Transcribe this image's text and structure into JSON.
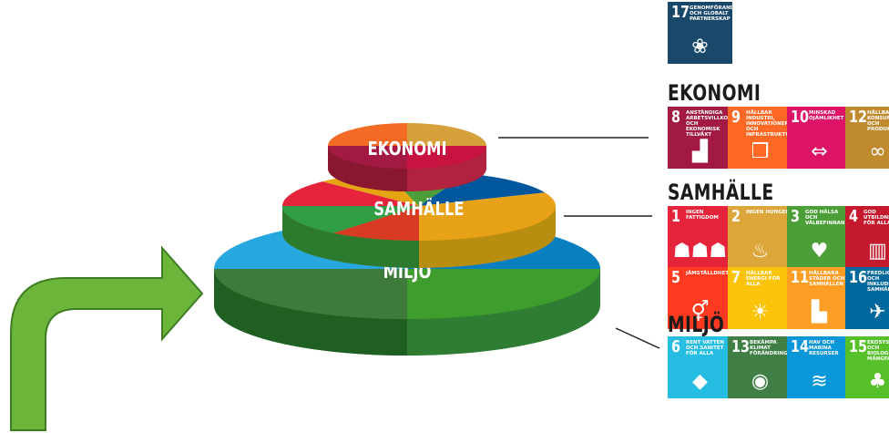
{
  "layers": [
    {
      "id": "ekonomi",
      "label": "EKONOMI"
    },
    {
      "id": "samhalle",
      "label": "SAMHÄLLE"
    },
    {
      "id": "miljo",
      "label": "MILJÖ"
    }
  ],
  "top_goal": {
    "num": "17",
    "text": "GENOMFÖRANDE OCH GLOBALT PARTNERSKAP",
    "color": "#19486a",
    "icon": "partnership-icon",
    "glyph": "❀"
  },
  "groups": [
    {
      "id": "ekonomi",
      "heading": "EKONOMI",
      "goals": [
        {
          "num": "8",
          "text": "ANSTÄNDIGA ARBETSVILLKOR OCH EKONOMISK TILLVÄXT",
          "color": "#a21942",
          "icon": "growth-chart-icon",
          "glyph": "▟"
        },
        {
          "num": "9",
          "text": "HÅLLBAR INDUSTRI, INNOVATIONER OCH INFRASTRUKTUR",
          "color": "#fd6925",
          "icon": "cubes-icon",
          "glyph": "❒"
        },
        {
          "num": "10",
          "text": "MINSKAD OJÄMLIKHET",
          "color": "#dd1367",
          "icon": "inequality-arrows-icon",
          "glyph": "⇔"
        },
        {
          "num": "12",
          "text": "HÅLLBAR KONSUMTION OCH PRODUKTION",
          "color": "#bf8b2e",
          "icon": "infinity-icon",
          "glyph": "∞"
        }
      ]
    },
    {
      "id": "samhalle",
      "heading": "SAMHÄLLE",
      "goals": [
        {
          "num": "1",
          "text": "INGEN FATTIGDOM",
          "color": "#e5243b",
          "icon": "family-icon",
          "glyph": "☗☗☗"
        },
        {
          "num": "2",
          "text": "INGEN HUNGER",
          "color": "#dda63a",
          "icon": "bowl-icon",
          "glyph": "♨"
        },
        {
          "num": "3",
          "text": "GOD HÄLSA OCH VÄLBEFINNANDE",
          "color": "#4c9f38",
          "icon": "heartbeat-icon",
          "glyph": "♥"
        },
        {
          "num": "4",
          "text": "GOD UTBILDNING FÖR ALLA",
          "color": "#c5192d",
          "icon": "book-icon",
          "glyph": "▥"
        },
        {
          "num": "5",
          "text": "JÄMSTÄLLDHET",
          "color": "#ff3a21",
          "icon": "gender-equality-icon",
          "glyph": "⚥"
        },
        {
          "num": "7",
          "text": "HÅLLBAR ENERGI FÖR ALLA",
          "color": "#fcc30b",
          "icon": "sun-icon",
          "glyph": "☀"
        },
        {
          "num": "11",
          "text": "HÅLLBARA STÄDER OCH SAMHÄLLEN",
          "color": "#fd9d24",
          "icon": "city-icon",
          "glyph": "▙"
        },
        {
          "num": "16",
          "text": "FREDLIGA OCH INKLUDERANDE SAMHÄLLEN",
          "color": "#00689d",
          "icon": "dove-icon",
          "glyph": "✈"
        }
      ]
    },
    {
      "id": "miljo",
      "heading": "MILJÖ",
      "goals": [
        {
          "num": "6",
          "text": "RENT VATTEN OCH SANITET FÖR ALLA",
          "color": "#26bde2",
          "icon": "water-drop-icon",
          "glyph": "◆"
        },
        {
          "num": "13",
          "text": "BEKÄMPA KLIMAT FÖRÄNDRINGARNA",
          "color": "#3f7e44",
          "icon": "globe-eye-icon",
          "glyph": "◉"
        },
        {
          "num": "14",
          "text": "HAV OCH MARINA RESURSER",
          "color": "#0a97d9",
          "icon": "fish-icon",
          "glyph": "≋"
        },
        {
          "num": "15",
          "text": "EKOSYSTEM OCH BIOLOGISK MÅNGFALD",
          "color": "#56c02b",
          "icon": "tree-icon",
          "glyph": "♣"
        }
      ]
    }
  ]
}
